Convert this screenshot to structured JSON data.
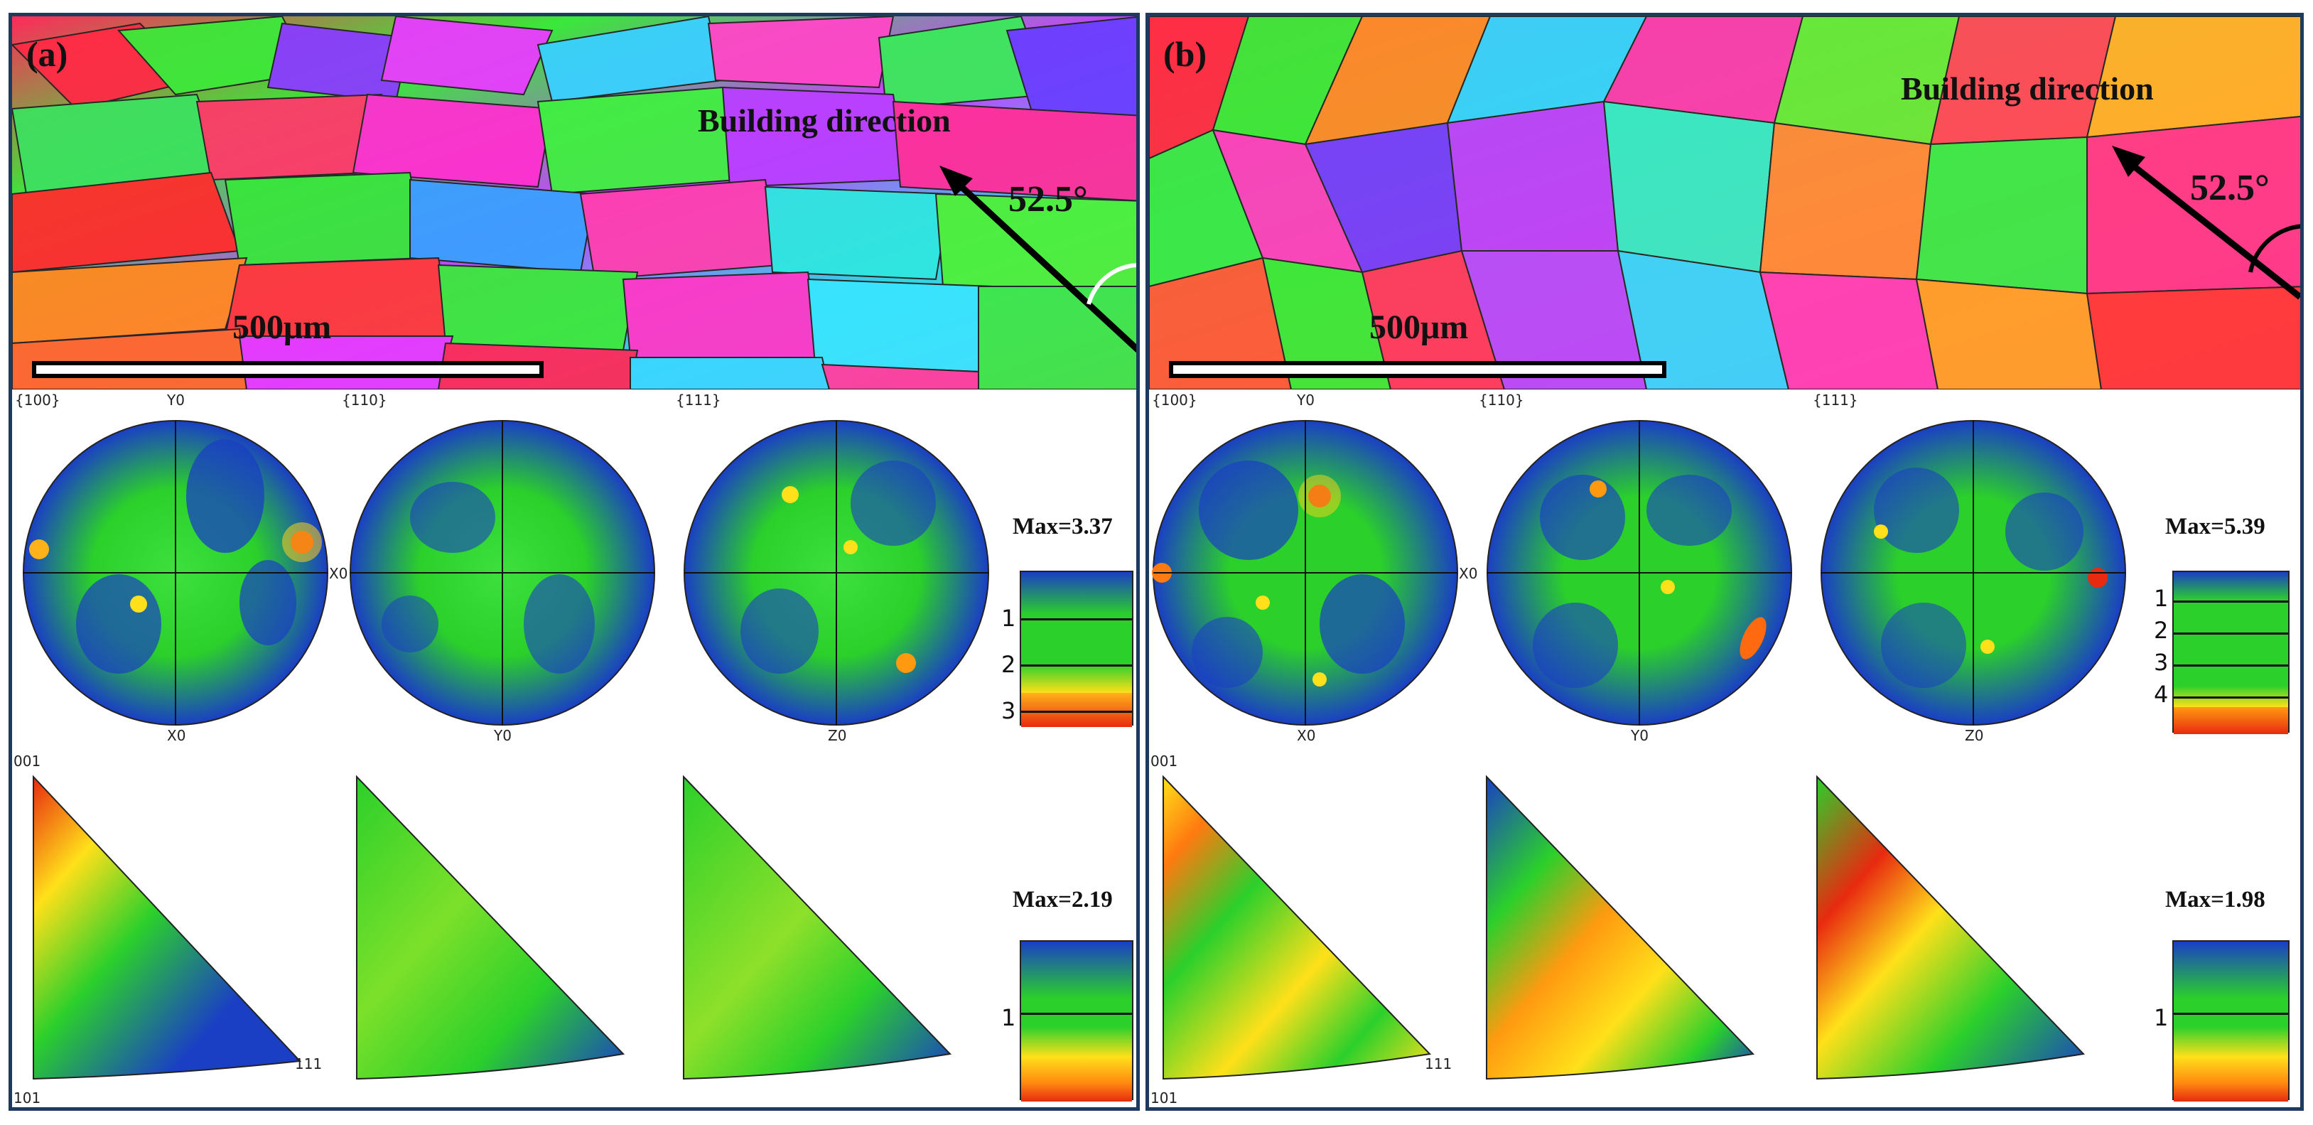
{
  "panels": [
    {
      "label": "(a)",
      "building_direction": "Building direction",
      "angle": "52.5°",
      "scale_bar": "500μm",
      "pole_figure_titles": [
        "{100}",
        "{110}",
        "{111}"
      ],
      "pole_figure_top_axes": [
        "Y0",
        "",
        ""
      ],
      "pole_figure_right_axes": [
        "X0",
        "",
        ""
      ],
      "pole_figure_bottom_axes": [
        "X0",
        "Y0",
        "Z0"
      ],
      "pf_max": "Max=3.37",
      "pf_ticks": [
        "1",
        "2",
        "3"
      ],
      "ipf_max": "Max=2.19",
      "ipf_ticks": [
        "1"
      ],
      "ipf_corners": {
        "top": "001",
        "right": "111",
        "bottom": "101"
      }
    },
    {
      "label": "(b)",
      "building_direction": "Building direction",
      "angle": "52.5°",
      "scale_bar": "500μm",
      "pole_figure_titles": [
        "{100}",
        "{110}",
        "{111}"
      ],
      "pole_figure_top_axes": [
        "Y0",
        "",
        ""
      ],
      "pole_figure_right_axes": [
        "X0",
        "",
        ""
      ],
      "pole_figure_bottom_axes": [
        "X0",
        "Y0",
        "Z0"
      ],
      "pf_max": "Max=5.39",
      "pf_ticks": [
        "1",
        "2",
        "3",
        "4"
      ],
      "ipf_max": "Max=1.98",
      "ipf_ticks": [
        "1"
      ],
      "ipf_corners": {
        "top": "001",
        "right": "111",
        "bottom": "101"
      }
    }
  ],
  "colors": {
    "frame": "#1e3a5f",
    "low": "#1a3fc4",
    "mid": "#2bd02b",
    "high": "#e82a10"
  }
}
